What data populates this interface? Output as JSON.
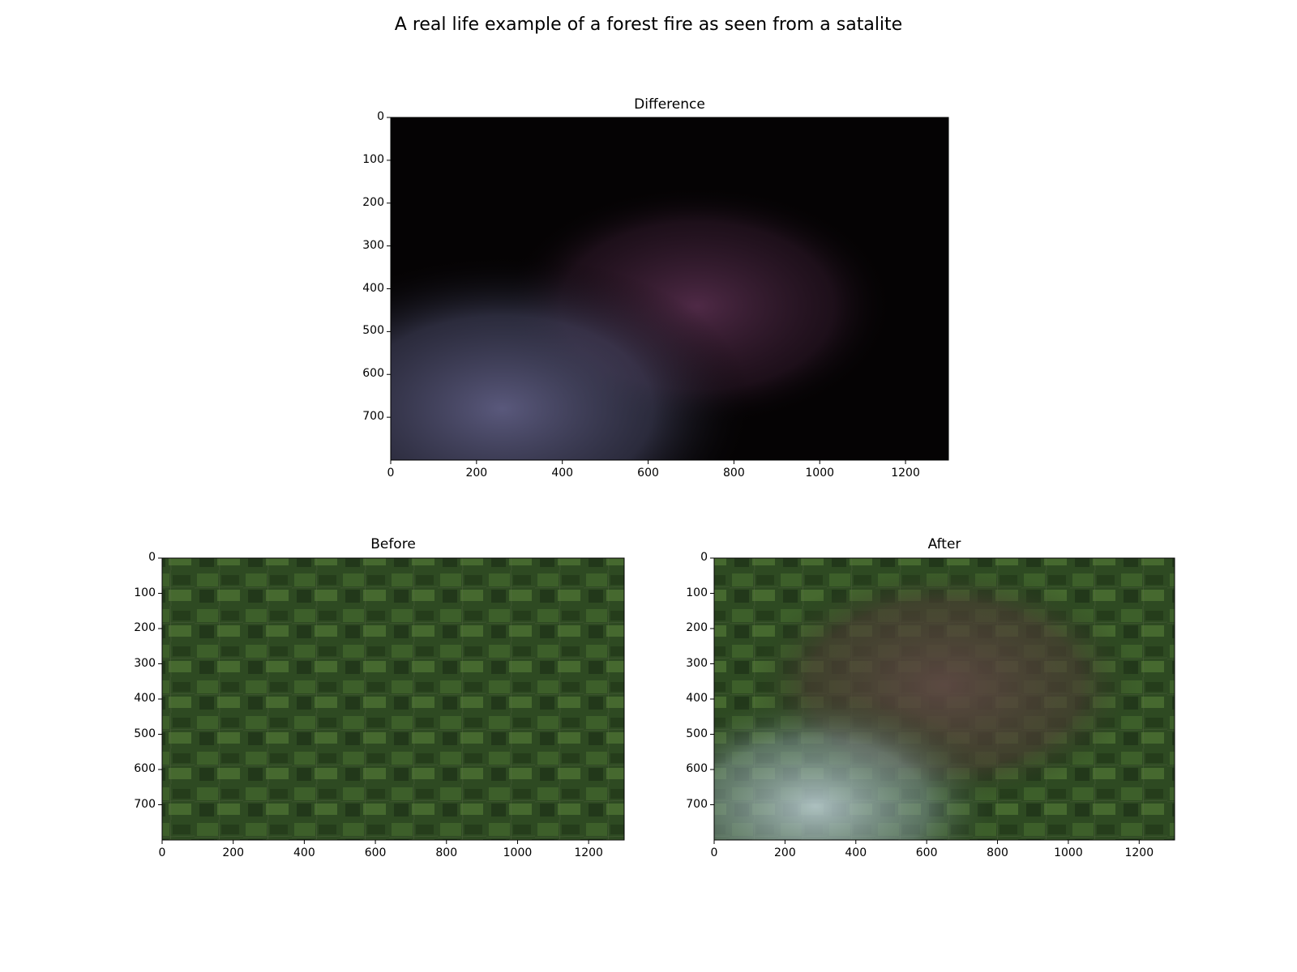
{
  "figure": {
    "suptitle": "A real life example of a forest fire as seen from a satalite"
  },
  "chart_data": [
    {
      "type": "image",
      "title": "Difference",
      "xlabel": "",
      "ylabel": "",
      "xlim": [
        0,
        1300
      ],
      "ylim": [
        800,
        0
      ],
      "xticks": [
        0,
        200,
        400,
        600,
        800,
        1000,
        1200
      ],
      "yticks": [
        0,
        100,
        200,
        300,
        400,
        500,
        600,
        700
      ],
      "grid": false,
      "colors": {
        "background": "#050304",
        "smoke": "#5b5a7e",
        "burn": "#6e3a62"
      }
    },
    {
      "type": "image",
      "title": "Before",
      "xlabel": "",
      "ylabel": "",
      "xlim": [
        0,
        1300
      ],
      "ylim": [
        800,
        0
      ],
      "xticks": [
        0,
        200,
        400,
        600,
        800,
        1000,
        1200
      ],
      "yticks": [
        0,
        100,
        200,
        300,
        400,
        500,
        600,
        700
      ],
      "grid": false,
      "colors": {
        "background": "#2b4420",
        "fields": "#41652c",
        "bare": "#8d7a62"
      }
    },
    {
      "type": "image",
      "title": "After",
      "xlabel": "",
      "ylabel": "",
      "xlim": [
        0,
        1300
      ],
      "ylim": [
        800,
        0
      ],
      "xticks": [
        0,
        200,
        400,
        600,
        800,
        1000,
        1200
      ],
      "yticks": [
        0,
        100,
        200,
        300,
        400,
        500,
        600,
        700
      ],
      "grid": false,
      "colors": {
        "background": "#2b4420",
        "burn": "#5a4540",
        "smoke": "#a6b8bd"
      }
    }
  ]
}
